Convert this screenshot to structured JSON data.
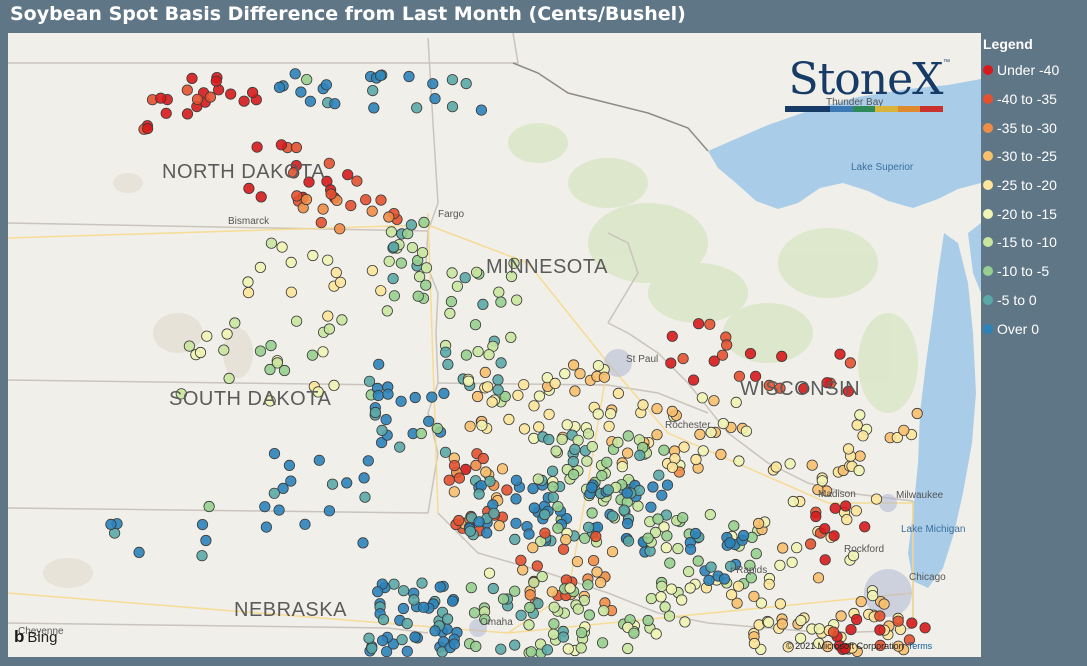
{
  "title": "Soybean Spot Basis Difference from Last Month (Cents/Bushel)",
  "legend": {
    "title": "Legend",
    "items": [
      {
        "label": "Under -40",
        "color": "#d7191c"
      },
      {
        "label": "-40 to -35",
        "color": "#e4512f"
      },
      {
        "label": "-35 to -30",
        "color": "#f08c46"
      },
      {
        "label": "-30 to -25",
        "color": "#f8bf6d"
      },
      {
        "label": "-25 to -20",
        "color": "#fde59a"
      },
      {
        "label": "-20 to -15",
        "color": "#f1f4b4"
      },
      {
        "label": "-15 to -10",
        "color": "#c9e5a0"
      },
      {
        "label": "-10 to -5",
        "color": "#97cf8f"
      },
      {
        "label": "-5 to 0",
        "color": "#5aa9a7"
      },
      {
        "label": "Over 0",
        "color": "#2b83ba"
      }
    ]
  },
  "logo": {
    "text": "StoneX",
    "tm": "™",
    "bar_colors": [
      "#163b66",
      "#163b66",
      "#3d7ab5",
      "#2f8a5a",
      "#d9b43a",
      "#e08a2e",
      "#c8312c"
    ]
  },
  "map": {
    "states": {
      "north_dakota": "NORTH DAKOTA",
      "south_dakota": "SOUTH DAKOTA",
      "minnesota": "MINNESOTA",
      "wisconsin": "WISCONSIN",
      "nebraska": "NEBRASKA"
    },
    "cities": {
      "bismarck": "Bismarck",
      "fargo": "Fargo",
      "st_paul": "St Paul",
      "rochester": "Rochester",
      "madison": "Madison",
      "milwaukee": "Milwaukee",
      "chicago": "Chicago",
      "rockford": "Rockford",
      "cedar_rapids": "r Rapids",
      "omaha": "Omaha",
      "thunder_bay": "Thunder Bay",
      "cheyenne": "Cheyenne"
    },
    "water": {
      "lake_superior": "Lake Superior",
      "lake_michigan": "Lake Michigan"
    },
    "attribution": "Bing",
    "copyright": "© 2021 Microsoft Corporation",
    "terms": "Terms"
  }
}
